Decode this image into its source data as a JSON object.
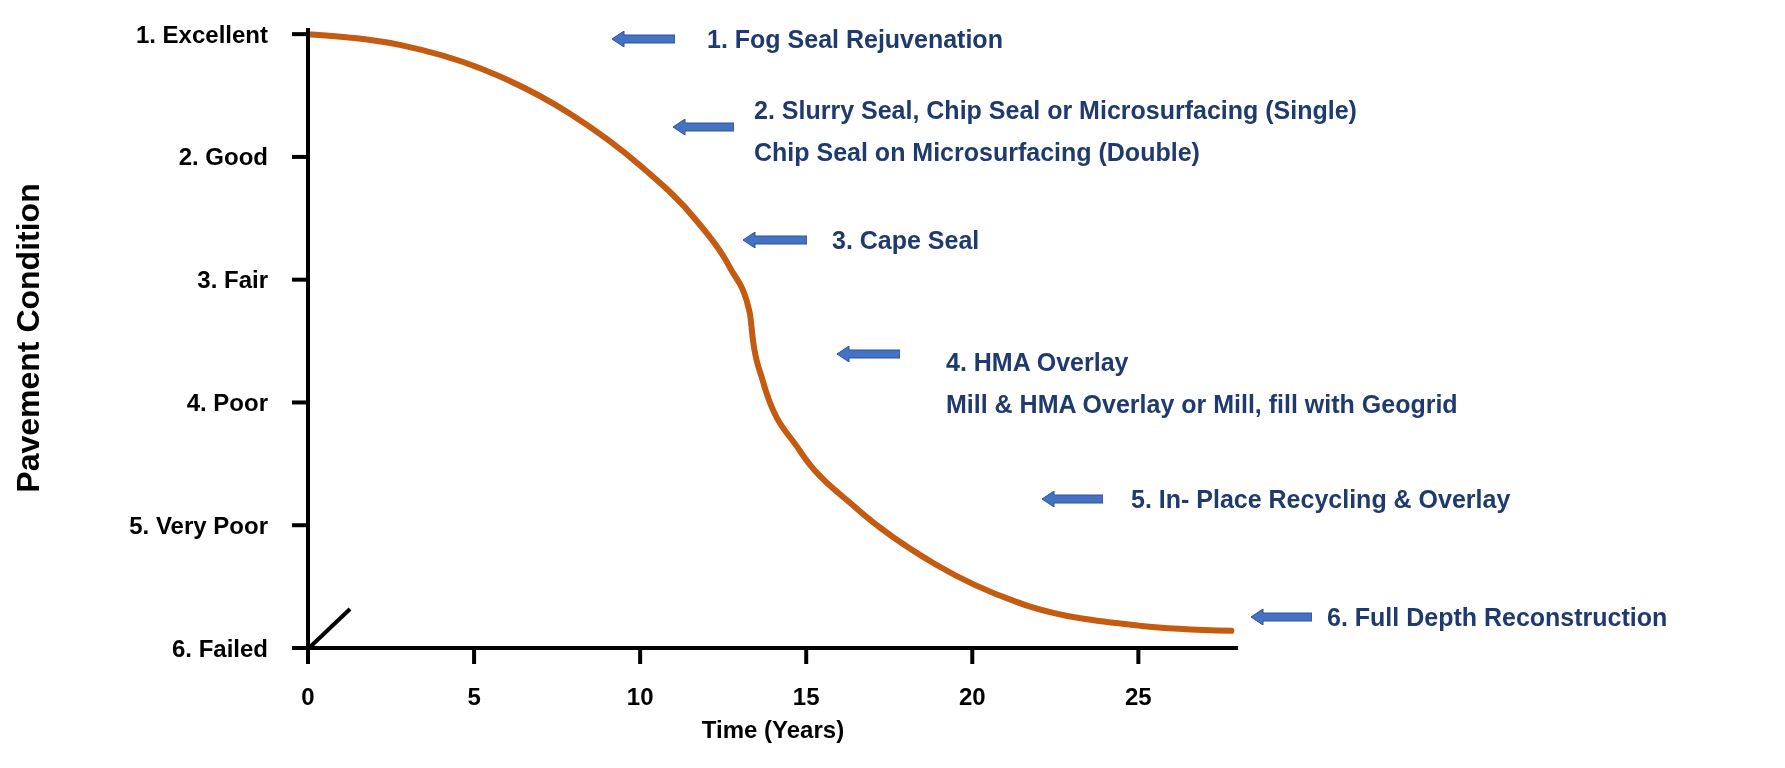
{
  "chart_data": {
    "type": "line",
    "xlabel": "Time (Years)",
    "ylabel": "Pavement Condition",
    "x": [
      0,
      2.8,
      5.2,
      7.9,
      10.0,
      11.7,
      12.7,
      13.3,
      13.4,
      13.7,
      14.8,
      16.5,
      18.9,
      21.6,
      25.1,
      27.8
    ],
    "values": [
      1.0,
      1.09,
      1.28,
      1.65,
      2.07,
      2.52,
      2.9,
      3.27,
      3.5,
      3.83,
      4.39,
      4.86,
      5.32,
      5.65,
      5.82,
      5.86
    ],
    "color": "#c55a11",
    "marker": "none",
    "line_style": "solid",
    "xlim": [
      0,
      28
    ],
    "xticks": [
      0,
      5,
      10,
      15,
      20,
      25
    ],
    "ylim": [
      6,
      0.95
    ],
    "yticks": [
      {
        "value": 1,
        "label": "1. Excellent"
      },
      {
        "value": 2,
        "label": "2. Good"
      },
      {
        "value": 3,
        "label": "3. Fair"
      },
      {
        "value": 4,
        "label": "4. Poor"
      },
      {
        "value": 5,
        "label": "5. Very Poor"
      },
      {
        "value": 6,
        "label": "6. Failed"
      }
    ],
    "annotations": [
      "1. Fog Seal Rejuvenation",
      "2. Slurry Seal, Chip Seal or Microsurfacing (Single)\nChip Seal on Microsurfacing (Double)",
      "3. Cape Seal",
      "4. HMA Overlay\nMill & HMA Overlay or Mill, fill with Geogrid",
      "5. In- Place Recycling & Overlay",
      "6. Full Depth Reconstruction"
    ]
  }
}
